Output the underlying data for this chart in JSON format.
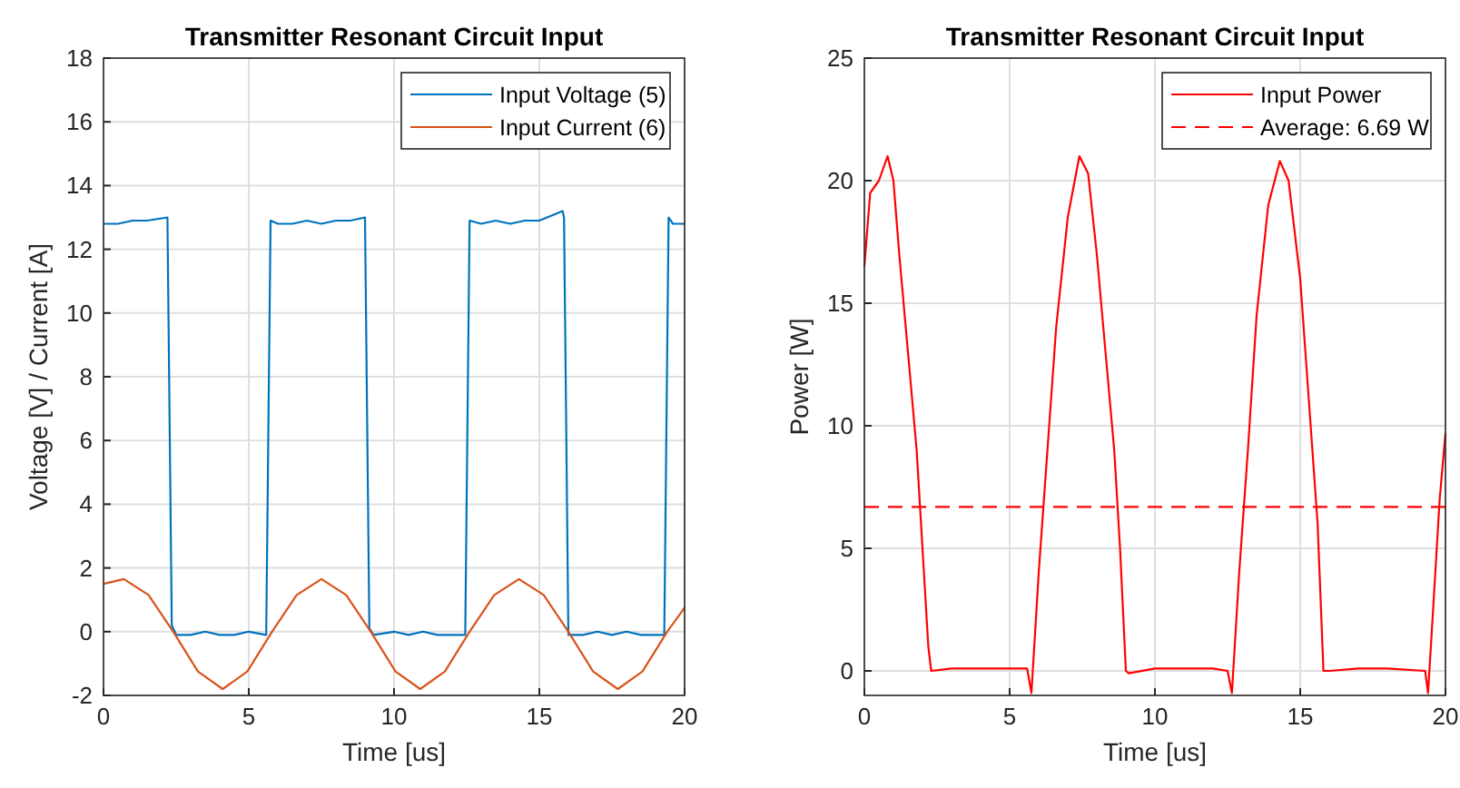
{
  "chart_data": [
    {
      "type": "line",
      "title": "Transmitter Resonant Circuit Input",
      "xlabel": "Time [us]",
      "ylabel": "Voltage [V] / Current [A]",
      "xlim": [
        0,
        20
      ],
      "xticks": [
        0,
        5,
        10,
        15,
        20
      ],
      "ylim": [
        -2,
        18
      ],
      "yticks": [
        -2,
        0,
        2,
        4,
        6,
        8,
        10,
        12,
        14,
        16,
        18
      ],
      "grid": true,
      "legend": "top right",
      "series": [
        {
          "name": "Input Voltage (5)",
          "color": "#0072bd",
          "x": [
            0,
            0.5,
            1,
            1.5,
            2.2,
            2.35,
            2.5,
            3,
            3.5,
            4,
            4.5,
            5,
            5.6,
            5.75,
            6,
            6.5,
            7,
            7.5,
            8,
            8.5,
            9,
            9.15,
            9.3,
            10,
            10.5,
            11,
            11.5,
            12,
            12.45,
            12.6,
            13,
            13.5,
            14,
            14.5,
            15,
            15.8,
            15.85,
            16,
            16.5,
            17,
            17.5,
            18,
            18.5,
            19.3,
            19.45,
            19.6,
            20
          ],
          "values": [
            12.8,
            12.8,
            12.9,
            12.9,
            13,
            0.2,
            -0.1,
            -0.1,
            0,
            -0.1,
            -0.1,
            0,
            -0.1,
            12.9,
            12.8,
            12.8,
            12.9,
            12.8,
            12.9,
            12.9,
            13,
            0.1,
            -0.1,
            0,
            -0.1,
            0,
            -0.1,
            -0.1,
            -0.1,
            12.9,
            12.8,
            12.9,
            12.8,
            12.9,
            12.9,
            13.2,
            13,
            -0.1,
            -0.1,
            0,
            -0.1,
            0,
            -0.1,
            -0.1,
            13,
            12.8,
            12.8
          ]
        },
        {
          "name": "Input Current (6)",
          "color": "#d95319",
          "x": [
            0,
            0.7,
            1.55,
            2.4,
            3.25,
            4.1,
            4.95,
            5.8,
            6.65,
            7.5,
            8.35,
            9.2,
            10.05,
            10.9,
            11.75,
            12.6,
            13.45,
            14.3,
            15.15,
            16,
            16.85,
            17.7,
            18.55,
            19.4,
            20
          ],
          "values": [
            1.5,
            1.65,
            1.15,
            0,
            -1.25,
            -1.8,
            -1.25,
            0,
            1.15,
            1.65,
            1.15,
            0,
            -1.25,
            -1.8,
            -1.25,
            0,
            1.15,
            1.65,
            1.15,
            0,
            -1.25,
            -1.8,
            -1.25,
            0,
            0.75
          ]
        }
      ]
    },
    {
      "type": "line",
      "title": "Transmitter Resonant Circuit Input",
      "xlabel": "Time [us]",
      "ylabel": "Power [W]",
      "xlim": [
        0,
        20
      ],
      "xticks": [
        0,
        5,
        10,
        15,
        20
      ],
      "ylim": [
        -1,
        25
      ],
      "yticks": [
        0,
        5,
        10,
        15,
        20,
        25
      ],
      "grid": true,
      "legend": "top right",
      "series": [
        {
          "name": "Input Power",
          "color": "#ff0000",
          "x": [
            0,
            0.2,
            0.5,
            0.8,
            1,
            1.2,
            1.5,
            1.8,
            2,
            2.2,
            2.3,
            3,
            4,
            5,
            5.6,
            5.75,
            6,
            6.3,
            6.6,
            7,
            7.4,
            7.7,
            8,
            8.3,
            8.6,
            8.8,
            9,
            9.1,
            10,
            11,
            12,
            12.5,
            12.65,
            12.9,
            13.2,
            13.5,
            13.9,
            14.3,
            14.6,
            15,
            15.3,
            15.6,
            15.8,
            16,
            17,
            18,
            19.3,
            19.4,
            19.6,
            19.8,
            20
          ],
          "values": [
            16.5,
            19.5,
            20,
            21,
            20,
            17,
            13,
            9,
            5,
            1,
            0,
            0.1,
            0.1,
            0.1,
            0.1,
            -0.9,
            4,
            9,
            14,
            18.5,
            21,
            20.3,
            17,
            13,
            9,
            5,
            0,
            -0.1,
            0.1,
            0.1,
            0.1,
            0,
            -0.9,
            4,
            9,
            14.5,
            19,
            20.8,
            20,
            16,
            11,
            6,
            0,
            0,
            0.1,
            0.1,
            0,
            -0.9,
            3,
            7,
            9.7
          ]
        }
      ],
      "ref_lines": [
        {
          "axis": "y",
          "value": 6.69,
          "label": "Average: 6.69 W",
          "color": "#ff0000",
          "line_style": "dashed"
        }
      ]
    }
  ]
}
